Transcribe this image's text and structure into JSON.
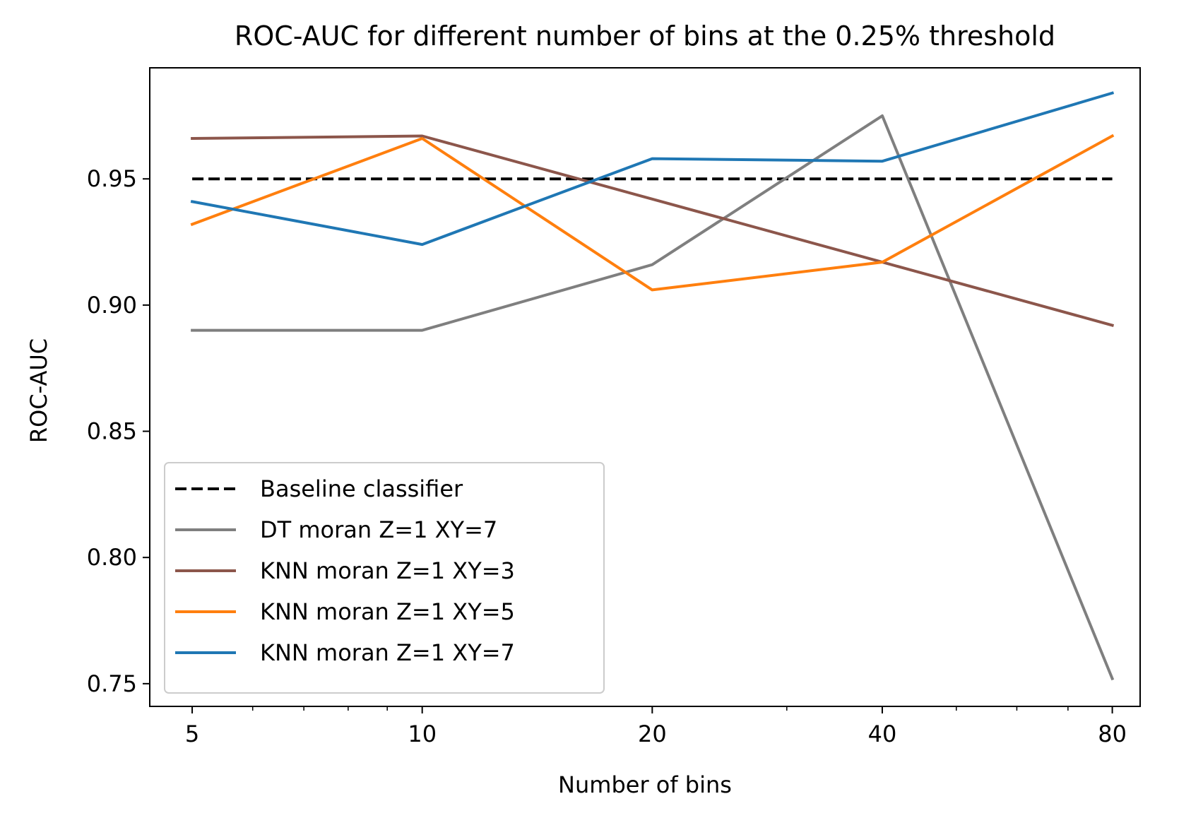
{
  "chart_data": {
    "type": "line",
    "title": "ROC-AUC for different number of bins at the 0.25% threshold",
    "xlabel": "Number of bins",
    "ylabel": "ROC-AUC",
    "x_scale": "log",
    "x": [
      5,
      10,
      20,
      40,
      80
    ],
    "x_tick_labels": [
      "5",
      "10",
      "20",
      "40",
      "80"
    ],
    "xlim": [
      4.4,
      87
    ],
    "ylim": [
      0.741,
      0.994
    ],
    "y_ticks": [
      0.75,
      0.8,
      0.85,
      0.9,
      0.95
    ],
    "y_tick_labels": [
      "0.75",
      "0.80",
      "0.85",
      "0.90",
      "0.95"
    ],
    "grid": false,
    "legend_position": "lower-left",
    "series": [
      {
        "name": "Baseline classifier",
        "color": "#000000",
        "dashed": true,
        "values": [
          0.95,
          0.95,
          0.95,
          0.95,
          0.95
        ]
      },
      {
        "name": "DT moran Z=1 XY=7",
        "color": "#7f7f7f",
        "dashed": false,
        "values": [
          0.89,
          0.89,
          0.916,
          0.975,
          0.752
        ]
      },
      {
        "name": "KNN moran Z=1 XY=3",
        "color": "#8c564b",
        "dashed": false,
        "values": [
          0.966,
          0.967,
          0.942,
          0.917,
          0.892
        ]
      },
      {
        "name": "KNN moran Z=1 XY=5",
        "color": "#ff7f0e",
        "dashed": false,
        "values": [
          0.932,
          0.966,
          0.906,
          0.917,
          0.967
        ]
      },
      {
        "name": "KNN moran Z=1 XY=7",
        "color": "#1f77b4",
        "dashed": false,
        "values": [
          0.941,
          0.924,
          0.958,
          0.957,
          0.984
        ]
      }
    ]
  }
}
